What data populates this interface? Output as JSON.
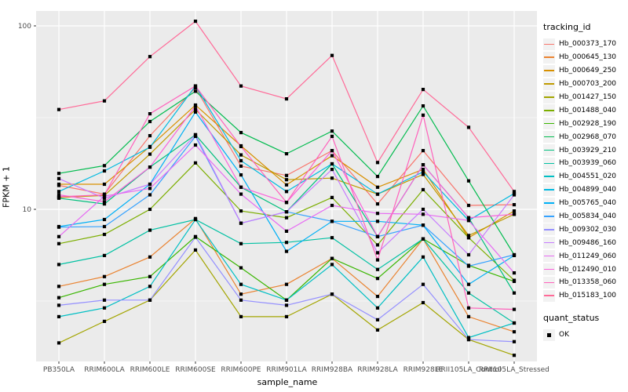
{
  "figure": {
    "x_axis_title": "sample_name",
    "y_axis_title": "FPKM + 1",
    "legend_title": "tracking_id",
    "quant_legend_title": "quant_status",
    "quant_legend_entry": "OK",
    "colors": {
      "panel_background": "#EBEBEB",
      "gridline": "#FFFFFF",
      "tick_text": "#4D4D4D",
      "tick_mark": "#333333",
      "point": "#000000",
      "legend_key_background": "#F2F2F2"
    }
  },
  "chart_data": {
    "type": "line",
    "title": "",
    "xlabel": "sample_name",
    "ylabel": "FPKM + 1",
    "yscale": "log10",
    "yticks": [
      10,
      100
    ],
    "ytick_labels": [
      "10",
      "100"
    ],
    "yticks_minor": [
      3.162,
      31.62
    ],
    "ylim": [
      1.45,
      120
    ],
    "grid": true,
    "legend_position": "right",
    "point_style": "black-filled-square",
    "quant_status_legend": {
      "title": "quant_status",
      "entries": [
        "OK"
      ]
    },
    "categories": [
      "PB350LA",
      "RRIM600LA",
      "RRIM600LE",
      "RRIM600SE",
      "RRIM600PE",
      "RRIM901LA",
      "RRIM928BA",
      "RRIM928LA",
      "RRIM928LE",
      "RRII105LA_Control",
      "RRII105LA_Stressed"
    ],
    "series": [
      {
        "name": "Hb_000373_170",
        "color": "#F8766D",
        "values": [
          13.5,
          12.1,
          25.2,
          46,
          17.2,
          15.3,
          20.9,
          10.7,
          20.9,
          10.5,
          10.6
        ]
      },
      {
        "name": "Hb_000645_130",
        "color": "#EA8331",
        "values": [
          3.8,
          4.3,
          5.5,
          8.9,
          3.45,
          3.9,
          5.4,
          3.35,
          6.9,
          2.6,
          2.15
        ]
      },
      {
        "name": "Hb_000649_250",
        "color": "#D89000",
        "values": [
          13.7,
          13.7,
          22,
          37,
          22.2,
          13.6,
          19.6,
          13.2,
          16.5,
          7.0,
          9.8
        ]
      },
      {
        "name": "Hb_000703_200",
        "color": "#C09B00",
        "values": [
          11.6,
          11.9,
          20,
          35,
          19.8,
          14.5,
          14.8,
          12.1,
          15.5,
          7.2,
          9.4
        ]
      },
      {
        "name": "Hb_001427_150",
        "color": "#A3A500",
        "values": [
          1.87,
          2.45,
          3.2,
          6.0,
          2.6,
          2.6,
          3.45,
          2.2,
          3.1,
          1.95,
          1.6
        ]
      },
      {
        "name": "Hb_001488_040",
        "color": "#7CAE00",
        "values": [
          6.5,
          7.3,
          10.0,
          17.9,
          9.8,
          9.0,
          11.6,
          6.4,
          12.8,
          7.0,
          4.1
        ]
      },
      {
        "name": "Hb_002928_190",
        "color": "#39B600",
        "values": [
          3.3,
          3.9,
          4.3,
          7.1,
          4.8,
          3.2,
          5.4,
          4.2,
          6.9,
          4.95,
          4.05
        ]
      },
      {
        "name": "Hb_002968_070",
        "color": "#00BB4E",
        "values": [
          15.7,
          17.3,
          30.1,
          44,
          26.2,
          20.1,
          26.7,
          15.1,
          36.6,
          14.3,
          5.65
        ]
      },
      {
        "name": "Hb_003929_210",
        "color": "#00BF7D",
        "values": [
          11.5,
          10.7,
          17.0,
          25.5,
          13.2,
          9.7,
          17.7,
          7.1,
          17.5,
          9.0,
          3.5
        ]
      },
      {
        "name": "Hb_003939_060",
        "color": "#00C1A3",
        "values": [
          5.0,
          5.6,
          7.7,
          8.8,
          6.5,
          6.6,
          7.0,
          4.7,
          6.9,
          3.5,
          2.4
        ]
      },
      {
        "name": "Hb_004551_020",
        "color": "#00BFC4",
        "values": [
          2.6,
          2.9,
          3.8,
          8.8,
          3.9,
          3.2,
          5.0,
          2.9,
          5.5,
          2.0,
          2.4
        ]
      },
      {
        "name": "Hb_004899_040",
        "color": "#00BAE0",
        "values": [
          12.5,
          16.2,
          21.8,
          47,
          18.4,
          12.5,
          17.7,
          12.1,
          16.0,
          8.7,
          12.2
        ]
      },
      {
        "name": "Hb_005765_040",
        "color": "#00B0F6",
        "values": [
          8.05,
          8.8,
          13.7,
          33.9,
          15.4,
          5.9,
          8.6,
          8.6,
          8.2,
          3.9,
          5.6
        ]
      },
      {
        "name": "Hb_005834_040",
        "color": "#35A2FF",
        "values": [
          8.0,
          8.05,
          12.0,
          25.0,
          8.4,
          9.7,
          8.6,
          7.1,
          8.2,
          4.9,
          5.65
        ]
      },
      {
        "name": "Hb_009302_030",
        "color": "#9590FF",
        "values": [
          3.0,
          3.2,
          3.2,
          7.05,
          3.2,
          3.0,
          3.45,
          2.5,
          3.9,
          1.95,
          1.9
        ]
      },
      {
        "name": "Hb_009486_160",
        "color": "#C77CFF",
        "values": [
          14.7,
          11.5,
          13.7,
          25.5,
          8.4,
          9.7,
          16.5,
          5.8,
          10.0,
          5.65,
          12.0
        ]
      },
      {
        "name": "Hb_011249_060",
        "color": "#E76BF3",
        "values": [
          7.1,
          11.8,
          13.0,
          22.4,
          12.1,
          7.6,
          10.5,
          9.5,
          9.4,
          8.7,
          4.5
        ]
      },
      {
        "name": "Hb_012490_010",
        "color": "#FA62DB",
        "values": [
          12.0,
          11.0,
          17.0,
          36.5,
          13.2,
          10.9,
          20.9,
          7.1,
          17.5,
          9.0,
          9.4
        ]
      },
      {
        "name": "Hb_013358_060",
        "color": "#FF62BC",
        "values": [
          11.7,
          12.0,
          33.2,
          47,
          22.0,
          10.9,
          25.0,
          5.3,
          32.6,
          2.9,
          2.85
        ]
      },
      {
        "name": "Hb_015183_100",
        "color": "#FF6A98",
        "values": [
          35,
          39,
          68,
          106,
          47,
          40,
          69,
          18,
          45,
          28,
          12.5
        ]
      }
    ]
  }
}
